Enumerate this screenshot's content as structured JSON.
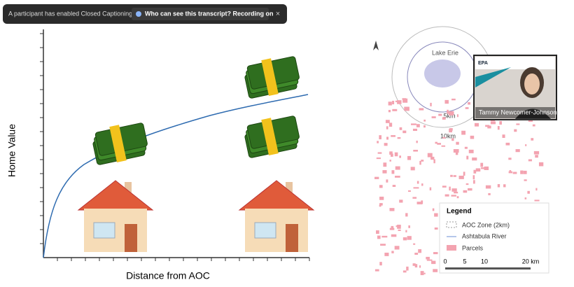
{
  "caption_bar": {
    "message": "A participant has enabled Closed Captioning",
    "link": "Who can see this transcript? Recording on",
    "close": "×"
  },
  "slide": {
    "y_axis_label": "Home Value",
    "x_axis_label": "Distance from AOC"
  },
  "map": {
    "lake": "Lake Erie",
    "rings": [
      "5km",
      "10km"
    ],
    "legend": {
      "title": "Legend",
      "items": [
        "AOC Zone (2km)",
        "Ashtabula River",
        "Parcels"
      ]
    },
    "scale": [
      "0",
      "5",
      "10",
      "20 km"
    ]
  },
  "video": {
    "logo": "EPA",
    "name": "Tammy Newcomer-Johnson"
  }
}
